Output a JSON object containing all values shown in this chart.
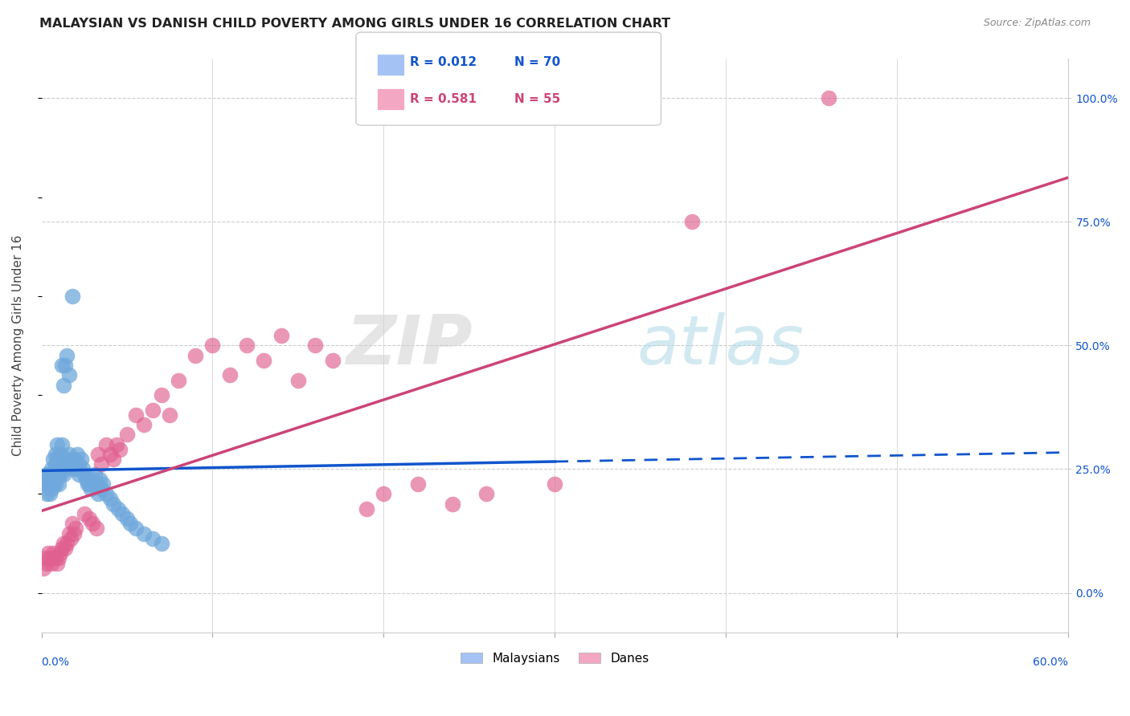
{
  "title": "MALAYSIAN VS DANISH CHILD POVERTY AMONG GIRLS UNDER 16 CORRELATION CHART",
  "source": "Source: ZipAtlas.com",
  "ylabel": "Child Poverty Among Girls Under 16",
  "right_yticks": [
    0.0,
    0.25,
    0.5,
    0.75,
    1.0
  ],
  "right_yticklabels": [
    "0.0%",
    "25.0%",
    "50.0%",
    "75.0%",
    "100.0%"
  ],
  "watermark_zip": "ZIP",
  "watermark_atlas": "atlas",
  "blue_scatter_color": "#6fa8dc",
  "pink_scatter_color": "#e06090",
  "blue_line_color": "#1155cc",
  "pink_line_color": "#cc4477",
  "blue_legend_fill": "#a4c2f4",
  "pink_legend_fill": "#f4a7c3",
  "background": "#ffffff",
  "grid_color": "#cccccc",
  "xlim": [
    0.0,
    0.6
  ],
  "ylim": [
    -0.08,
    1.08
  ],
  "malaysian_x": [
    0.002,
    0.003,
    0.003,
    0.004,
    0.004,
    0.005,
    0.005,
    0.005,
    0.006,
    0.006,
    0.006,
    0.007,
    0.007,
    0.007,
    0.008,
    0.008,
    0.008,
    0.008,
    0.009,
    0.009,
    0.009,
    0.01,
    0.01,
    0.01,
    0.011,
    0.011,
    0.011,
    0.012,
    0.012,
    0.013,
    0.013,
    0.014,
    0.014,
    0.015,
    0.015,
    0.016,
    0.016,
    0.017,
    0.018,
    0.018,
    0.019,
    0.02,
    0.021,
    0.022,
    0.022,
    0.023,
    0.024,
    0.025,
    0.026,
    0.027,
    0.028,
    0.029,
    0.03,
    0.031,
    0.032,
    0.033,
    0.034,
    0.035,
    0.036,
    0.038,
    0.04,
    0.042,
    0.045,
    0.047,
    0.05,
    0.052,
    0.055,
    0.06,
    0.065,
    0.07
  ],
  "malaysian_y": [
    0.22,
    0.24,
    0.2,
    0.24,
    0.22,
    0.24,
    0.22,
    0.2,
    0.25,
    0.23,
    0.21,
    0.27,
    0.24,
    0.22,
    0.28,
    0.26,
    0.24,
    0.22,
    0.3,
    0.27,
    0.24,
    0.26,
    0.24,
    0.22,
    0.28,
    0.26,
    0.24,
    0.46,
    0.3,
    0.42,
    0.24,
    0.46,
    0.26,
    0.48,
    0.27,
    0.44,
    0.28,
    0.26,
    0.6,
    0.25,
    0.27,
    0.25,
    0.28,
    0.26,
    0.24,
    0.27,
    0.25,
    0.24,
    0.23,
    0.22,
    0.22,
    0.21,
    0.23,
    0.24,
    0.22,
    0.2,
    0.23,
    0.21,
    0.22,
    0.2,
    0.19,
    0.18,
    0.17,
    0.16,
    0.15,
    0.14,
    0.13,
    0.12,
    0.11,
    0.1
  ],
  "danish_x": [
    0.001,
    0.002,
    0.003,
    0.004,
    0.005,
    0.006,
    0.007,
    0.008,
    0.009,
    0.01,
    0.011,
    0.012,
    0.013,
    0.014,
    0.015,
    0.016,
    0.017,
    0.018,
    0.019,
    0.02,
    0.025,
    0.028,
    0.03,
    0.032,
    0.033,
    0.035,
    0.038,
    0.04,
    0.042,
    0.044,
    0.046,
    0.05,
    0.055,
    0.06,
    0.065,
    0.07,
    0.075,
    0.08,
    0.09,
    0.1,
    0.11,
    0.12,
    0.13,
    0.14,
    0.15,
    0.16,
    0.17,
    0.19,
    0.2,
    0.22,
    0.24,
    0.26,
    0.3,
    0.38,
    0.46
  ],
  "danish_y": [
    0.05,
    0.07,
    0.06,
    0.08,
    0.07,
    0.06,
    0.08,
    0.07,
    0.06,
    0.07,
    0.08,
    0.09,
    0.1,
    0.09,
    0.1,
    0.12,
    0.11,
    0.14,
    0.12,
    0.13,
    0.16,
    0.15,
    0.14,
    0.13,
    0.28,
    0.26,
    0.3,
    0.28,
    0.27,
    0.3,
    0.29,
    0.32,
    0.36,
    0.34,
    0.37,
    0.4,
    0.36,
    0.43,
    0.48,
    0.5,
    0.44,
    0.5,
    0.47,
    0.52,
    0.43,
    0.5,
    0.47,
    0.17,
    0.2,
    0.22,
    0.18,
    0.2,
    0.22,
    0.75,
    1.0
  ]
}
